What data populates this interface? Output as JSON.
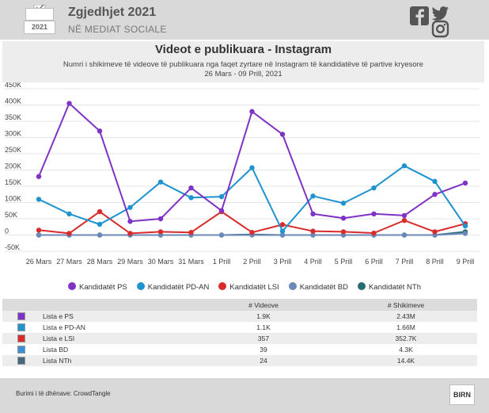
{
  "brand": {
    "title": "Zgjedhjet 2021",
    "subtitle": "NË MEDIAT SOCIALE",
    "year": "2021"
  },
  "social": {
    "icons": [
      "facebook-icon",
      "twitter-icon",
      "instagram-icon"
    ]
  },
  "header": {
    "title": "Videot e publikuara - Instagram",
    "subtitle": "Numri i shikimeve të videove të publikuara nga faqet zyrtare në Instagram të kandidatëve të partive kryesore",
    "date_range": "26 Mars - 09 Prill, 2021"
  },
  "chart_data": {
    "type": "line",
    "title": "Videot e publikuara - Instagram",
    "x": [
      "26 Mars",
      "27 Mars",
      "28 Mars",
      "29 Mars",
      "30 Mars",
      "31 Mars",
      "1 Prill",
      "2 Prill",
      "3 Prill",
      "4 Prill",
      "5 Prill",
      "6 Prill",
      "7 Prill",
      "8 Prill",
      "9 Prill"
    ],
    "ylim": [
      -50000,
      450000
    ],
    "yticks": [
      -50000,
      0,
      50000,
      100000,
      150000,
      200000,
      250000,
      300000,
      350000,
      400000,
      450000
    ],
    "ytick_labels": [
      "-50K",
      "0",
      "50K",
      "100K",
      "150K",
      "200K",
      "250K",
      "300K",
      "350K",
      "400K",
      "450K"
    ],
    "series": [
      {
        "name": "Kandidatët PS",
        "color": "#7f33c6",
        "values": [
          180000,
          405000,
          320000,
          42000,
          50000,
          145000,
          75000,
          380000,
          310000,
          65000,
          52000,
          65000,
          60000,
          125000,
          160000
        ]
      },
      {
        "name": "Kandidatët PD-AN",
        "color": "#1e93cf",
        "values": [
          110000,
          65000,
          33000,
          85000,
          163000,
          115000,
          118000,
          207000,
          12000,
          120000,
          98000,
          145000,
          213000,
          165000,
          28000
        ]
      },
      {
        "name": "Kandidatët LSI",
        "color": "#d82c2c",
        "values": [
          15000,
          5000,
          72000,
          5000,
          10000,
          8000,
          72000,
          8000,
          32000,
          12000,
          10000,
          6000,
          45000,
          10000,
          35000
        ]
      },
      {
        "name": "Kandidatët BD",
        "color": "#6b89b8",
        "values": [
          0,
          0,
          0,
          0,
          0,
          0,
          0,
          0,
          0,
          0,
          0,
          0,
          0,
          0,
          5000
        ]
      },
      {
        "name": "Kandidatët NTh",
        "color": "#2a6b73",
        "values": [
          0,
          0,
          0,
          0,
          0,
          0,
          0,
          2000,
          0,
          0,
          0,
          0,
          0,
          0,
          10000
        ]
      }
    ]
  },
  "table": {
    "columns": [
      "",
      "",
      "# Videove",
      "# Shikimeve"
    ],
    "rows": [
      {
        "icon": "ps-logo-icon",
        "color": "#7f33c6",
        "name": "Lista e PS",
        "videos": "1.9K",
        "views": "2.43M"
      },
      {
        "icon": "pd-an-logo-icon",
        "color": "#1e93cf",
        "name": "Lista e PD-AN",
        "videos": "1.1K",
        "views": "1.66M"
      },
      {
        "icon": "lsi-logo-icon",
        "color": "#d82c2c",
        "name": "Lista e LSI",
        "videos": "357",
        "views": "352.7K"
      },
      {
        "icon": "bd-logo-icon",
        "color": "#3b8fd9",
        "name": "Lista BD",
        "videos": "39",
        "views": "4.3K"
      },
      {
        "icon": "nth-logo-icon",
        "color": "#45697a",
        "name": "Lista NTh",
        "videos": "24",
        "views": "14.4K"
      }
    ]
  },
  "footer": {
    "source": "Burimi i të dhënave: CrowdTangle",
    "logo": "BIRN"
  }
}
